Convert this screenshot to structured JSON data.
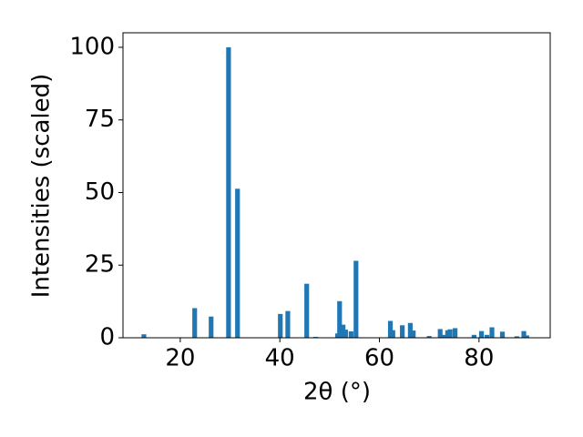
{
  "chart_data": {
    "type": "bar",
    "x": [
      12.7,
      22.9,
      26.2,
      29.7,
      31.5,
      40.1,
      41.6,
      45.4,
      47.2,
      51.6,
      52.0,
      52.7,
      53.2,
      54.3,
      55.3,
      62.2,
      62.7,
      64.6,
      66.2,
      66.8,
      70.0,
      72.2,
      72.8,
      73.7,
      74.2,
      75.2,
      79.0,
      80.5,
      81.6,
      82.6,
      84.7,
      87.6,
      89.0,
      89.6
    ],
    "values": [
      1.2,
      10.2,
      7.3,
      100,
      51.3,
      8.2,
      9.2,
      18.6,
      0.3,
      1.5,
      12.6,
      4.5,
      2.8,
      2.2,
      26.5,
      5.8,
      2.6,
      4.3,
      5.1,
      2.5,
      0.6,
      3.0,
      1.0,
      2.6,
      2.9,
      3.3,
      1.0,
      2.3,
      1.0,
      3.6,
      2.1,
      0.5,
      2.3,
      0.8
    ],
    "color": "#1f77b4",
    "xlabel": "2θ (°)",
    "ylabel": "Intensities (scaled)",
    "xlim": [
      8.5,
      94.3
    ],
    "xticks": [
      20,
      40,
      60,
      80
    ],
    "ylim": [
      0,
      105
    ],
    "yticks": [
      0,
      25,
      50,
      75,
      100
    ],
    "grid": false
  }
}
